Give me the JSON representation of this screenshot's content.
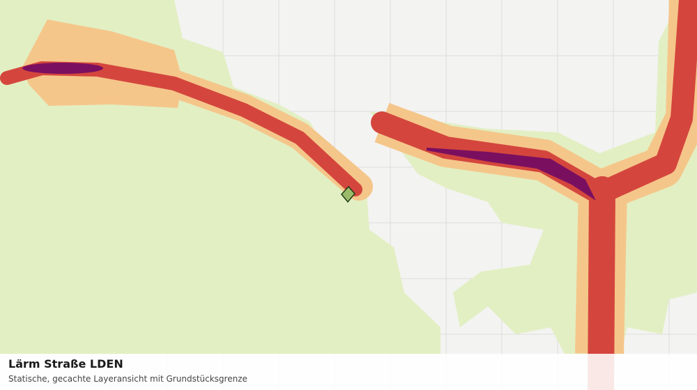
{
  "map": {
    "title": "Lärm Straße LDEN",
    "subtitle": "Statische, gecachte Layeransicht mit Grundstücksgrenze"
  }
}
